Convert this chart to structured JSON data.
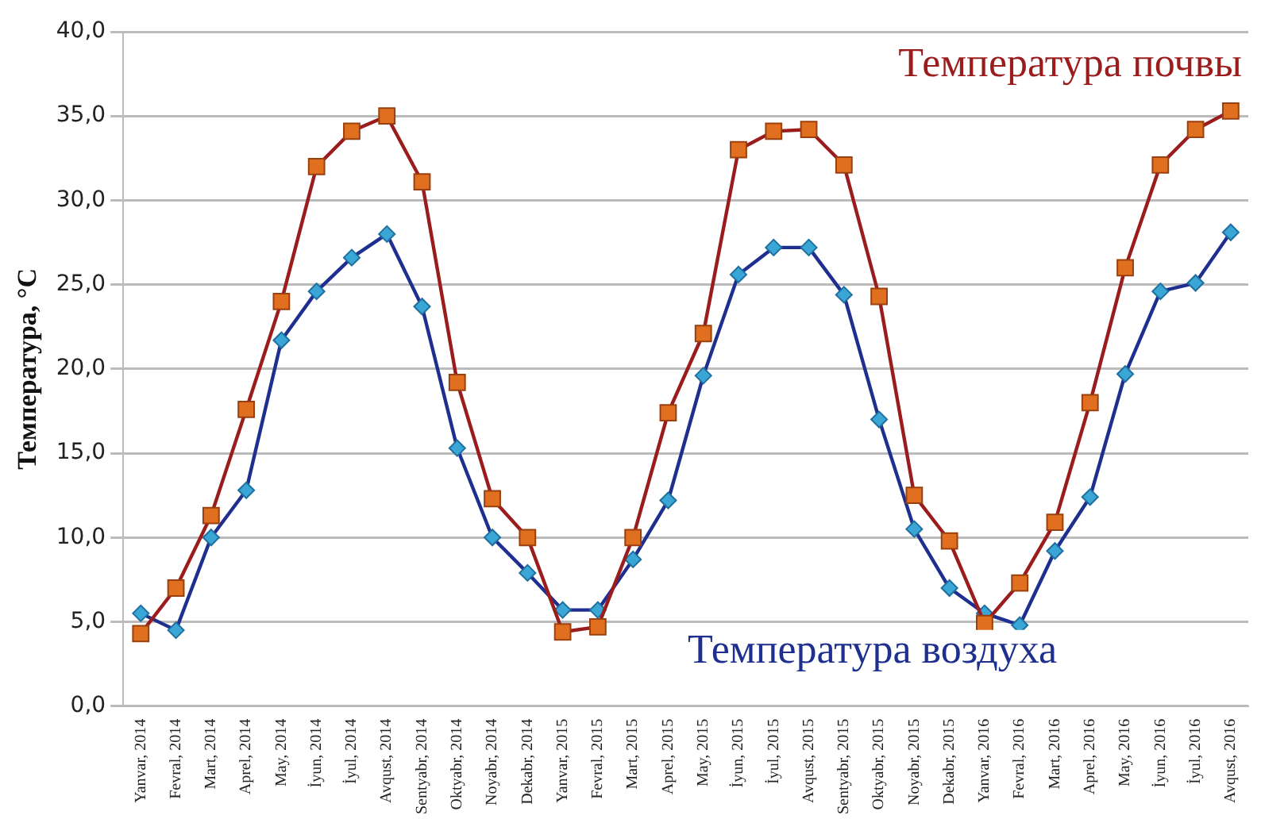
{
  "chart_data": {
    "type": "line",
    "ylabel": "Температура, °C",
    "categories": [
      "Yanvar, 2014",
      "Fevral, 2014",
      "Mart, 2014",
      "Aprel, 2014",
      "May, 2014",
      "İyun, 2014",
      "İyul, 2014",
      "Avqust, 2014",
      "Sentyabr, 2014",
      "Oktyabr, 2014",
      "Noyabr, 2014",
      "Dekabr, 2014",
      "Yanvar, 2015",
      "Fevral, 2015",
      "Mart, 2015",
      "Aprel, 2015",
      "May, 2015",
      "İyun, 2015",
      "İyul, 2015",
      "Avqust, 2015",
      "Sentyabr, 2015",
      "Oktyabr, 2015",
      "Noyabr, 2015",
      "Dekabr, 2015",
      "Yanvar, 2016",
      "Fevral, 2016",
      "Mart, 2016",
      "Aprel, 2016",
      "May, 2016",
      "İyun, 2016",
      "İyul, 2016",
      "Avqust, 2016"
    ],
    "series": [
      {
        "name": "Температура почвы",
        "color": "#9b1c1c",
        "marker": "square",
        "values": [
          4.3,
          7.0,
          11.3,
          17.6,
          24.0,
          32.0,
          34.1,
          35.0,
          31.1,
          19.2,
          12.3,
          10.0,
          4.4,
          4.7,
          10.0,
          17.4,
          22.1,
          33.0,
          34.1,
          34.2,
          32.1,
          24.3,
          12.5,
          9.8,
          4.9,
          7.3,
          10.9,
          18.0,
          26.0,
          32.1,
          34.2,
          35.3
        ]
      },
      {
        "name": "Температура воздуха",
        "color": "#1f2f8f",
        "marker": "diamond",
        "values": [
          5.5,
          4.5,
          10.0,
          12.8,
          21.7,
          24.6,
          26.6,
          28.0,
          23.7,
          15.3,
          10.0,
          7.9,
          5.7,
          5.7,
          8.7,
          12.2,
          19.6,
          25.6,
          27.2,
          27.2,
          24.4,
          17.0,
          10.5,
          7.0,
          5.5,
          4.8,
          9.2,
          12.4,
          19.7,
          24.6,
          25.1,
          28.1
        ]
      }
    ],
    "ylim": [
      0,
      40
    ],
    "yticks": [
      {
        "value": 0,
        "label": "0,0"
      },
      {
        "value": 5,
        "label": "5,0"
      },
      {
        "value": 10,
        "label": "10,0"
      },
      {
        "value": 15,
        "label": "15,0"
      },
      {
        "value": 20,
        "label": "20,0"
      },
      {
        "value": 25,
        "label": "25,0"
      },
      {
        "value": 30,
        "label": "30,0"
      },
      {
        "value": 35,
        "label": "35,0"
      },
      {
        "value": 40,
        "label": "40,0"
      }
    ],
    "grid": "y",
    "legend": false
  }
}
